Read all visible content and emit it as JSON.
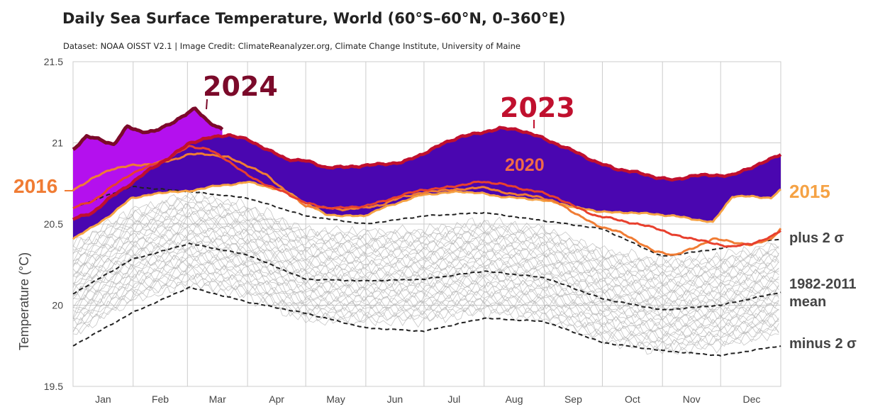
{
  "header": {
    "title": "Daily Sea Surface Temperature, World (60°S–60°N, 0–360°E)",
    "subtitle": "Dataset: NOAA OISST V2.1 | Image Credit: ClimateReanalyzer.org, Climate Change Institute, University of Maine"
  },
  "colors": {
    "background": "#ffffff",
    "grid": "#cccccc",
    "gray_years": "#b3b3b3",
    "stats": "#222222",
    "y2024": "#7b0a2a",
    "y2024_fill": "#b410ee",
    "y2023": "#c0102e",
    "y2023_fill": "#4a06b0",
    "y2020": "#e8402e",
    "y2016": "#f07c34",
    "y2015": "#f5a244",
    "label_2020": "#f06a48",
    "label_2016": "#f07c34",
    "label_2015": "#f5a244",
    "axis_text": "#444444"
  },
  "chart_data": {
    "type": "line",
    "title": "Daily Sea Surface Temperature, World (60°S–60°N, 0–360°E)",
    "subtitle": "Dataset: NOAA OISST V2.1 | Image Credit: ClimateReanalyzer.org, Climate Change Institute, University of Maine",
    "ylabel": "Temperature (°C)",
    "xlabel": "",
    "ylim": [
      19.5,
      21.5
    ],
    "xlim": [
      1,
      366
    ],
    "y_ticks": [
      "21.5",
      "21",
      "20.5",
      "20",
      "19.5"
    ],
    "month_labels": [
      "Jan",
      "Feb",
      "Mar",
      "Apr",
      "May",
      "Jun",
      "Jul",
      "Aug",
      "Sep",
      "Oct",
      "Nov",
      "Dec"
    ],
    "month_starts": [
      1,
      32,
      60,
      91,
      121,
      152,
      182,
      213,
      244,
      274,
      305,
      335
    ],
    "grid": true,
    "legend": "none (direct labels)",
    "series": [
      {
        "name": "2024",
        "x": [
          1,
          8,
          15,
          22,
          29,
          36,
          43,
          50,
          57,
          64,
          71,
          78
        ],
        "y": [
          20.96,
          21.04,
          21.02,
          20.99,
          21.1,
          21.07,
          21.07,
          21.11,
          21.16,
          21.21,
          21.13,
          21.08
        ]
      },
      {
        "name": "2023",
        "x": [
          1,
          11,
          21,
          31,
          41,
          51,
          61,
          71,
          81,
          91,
          101,
          111,
          121,
          131,
          141,
          151,
          161,
          171,
          181,
          191,
          201,
          211,
          221,
          231,
          241,
          251,
          261,
          271,
          281,
          291,
          301,
          311,
          321,
          331,
          341,
          351,
          361,
          366
        ],
        "y": [
          20.53,
          20.57,
          20.67,
          20.75,
          20.84,
          20.91,
          21,
          21.03,
          21.05,
          21.02,
          20.96,
          20.9,
          20.89,
          20.85,
          20.85,
          20.86,
          20.87,
          20.88,
          20.93,
          20.99,
          21.04,
          21.06,
          21.09,
          21.08,
          21.04,
          20.99,
          20.94,
          20.88,
          20.84,
          20.82,
          20.79,
          20.77,
          20.8,
          20.8,
          20.8,
          20.85,
          20.9,
          20.93
        ]
      },
      {
        "name": "2020",
        "x": [
          1,
          11,
          21,
          31,
          41,
          51,
          61,
          71,
          81,
          91,
          101,
          111,
          121,
          131,
          141,
          151,
          161,
          171,
          181,
          191,
          201,
          211,
          221,
          231,
          241,
          251,
          261,
          271,
          281,
          291,
          301,
          311,
          321,
          331,
          341,
          351,
          361,
          366
        ],
        "y": [
          20.6,
          20.64,
          20.73,
          20.81,
          20.86,
          20.91,
          20.98,
          20.96,
          20.89,
          20.8,
          20.74,
          20.69,
          20.63,
          20.6,
          20.6,
          20.61,
          20.64,
          20.68,
          20.71,
          20.72,
          20.74,
          20.76,
          20.75,
          20.72,
          20.7,
          20.66,
          20.6,
          20.55,
          20.53,
          20.5,
          20.48,
          20.43,
          20.41,
          20.38,
          20.36,
          20.38,
          20.42,
          20.46
        ]
      },
      {
        "name": "2016",
        "x": [
          1,
          11,
          21,
          31,
          41,
          51,
          61,
          71,
          81,
          91,
          101,
          111,
          121,
          131,
          141,
          151,
          161,
          171,
          181,
          191,
          201,
          211,
          221,
          231,
          241,
          251,
          261,
          271,
          281,
          291,
          301,
          311,
          321,
          331,
          341,
          351,
          361,
          366
        ],
        "y": [
          20.71,
          20.78,
          20.84,
          20.86,
          20.87,
          20.89,
          20.93,
          20.93,
          20.91,
          20.86,
          20.8,
          20.7,
          20.61,
          20.6,
          20.59,
          20.6,
          20.62,
          20.67,
          20.69,
          20.71,
          20.71,
          20.73,
          20.7,
          20.68,
          20.67,
          20.63,
          20.56,
          20.49,
          20.46,
          20.4,
          20.33,
          20.31,
          20.35,
          20.41,
          20.39,
          20.37,
          20.41,
          20.47
        ]
      },
      {
        "name": "2015",
        "x": [
          1,
          11,
          21,
          31,
          41,
          51,
          61,
          71,
          81,
          91,
          101,
          111,
          121,
          131,
          141,
          151,
          161,
          171,
          181,
          191,
          201,
          211,
          221,
          231,
          241,
          251,
          261,
          271,
          281,
          291,
          301,
          311,
          321,
          331,
          341,
          351,
          361,
          366
        ],
        "y": [
          20.41,
          20.48,
          20.56,
          20.66,
          20.68,
          20.7,
          20.7,
          20.73,
          20.74,
          20.76,
          20.73,
          20.7,
          20.63,
          20.56,
          20.55,
          20.55,
          20.6,
          20.64,
          20.68,
          20.69,
          20.7,
          20.69,
          20.67,
          20.66,
          20.65,
          20.63,
          20.6,
          20.58,
          20.57,
          20.57,
          20.56,
          20.55,
          20.53,
          20.51,
          20.67,
          20.67,
          20.66,
          20.71
        ]
      },
      {
        "name": "plus 2 σ",
        "x": [
          1,
          31,
          61,
          91,
          121,
          152,
          182,
          213,
          244,
          274,
          305,
          335,
          366
        ],
        "y": [
          20.6,
          20.73,
          20.7,
          20.66,
          20.55,
          20.5,
          20.55,
          20.57,
          20.52,
          20.47,
          20.3,
          20.35,
          20.41
        ]
      },
      {
        "name": "1982-2011 mean",
        "x": [
          1,
          31,
          61,
          91,
          121,
          152,
          182,
          213,
          244,
          274,
          305,
          335,
          366
        ],
        "y": [
          20.07,
          20.28,
          20.38,
          20.31,
          20.16,
          20.15,
          20.16,
          20.21,
          20.17,
          20.04,
          19.97,
          20.0,
          20.08
        ]
      },
      {
        "name": "minus 2 σ",
        "x": [
          1,
          31,
          61,
          91,
          121,
          152,
          182,
          213,
          244,
          274,
          305,
          335,
          366
        ],
        "y": [
          19.75,
          19.95,
          20.11,
          20.02,
          19.95,
          19.86,
          19.84,
          19.92,
          19.9,
          19.77,
          19.72,
          19.69,
          19.75
        ]
      }
    ],
    "annotations": {
      "year_2024": "2024",
      "year_2023": "2023",
      "year_2020": "2020",
      "year_2016": "2016",
      "year_2015": "2015",
      "plus_sigma": "plus 2 σ",
      "mean_line1": "1982-2011",
      "mean_line2": "mean",
      "minus_sigma": "minus 2 σ"
    }
  }
}
